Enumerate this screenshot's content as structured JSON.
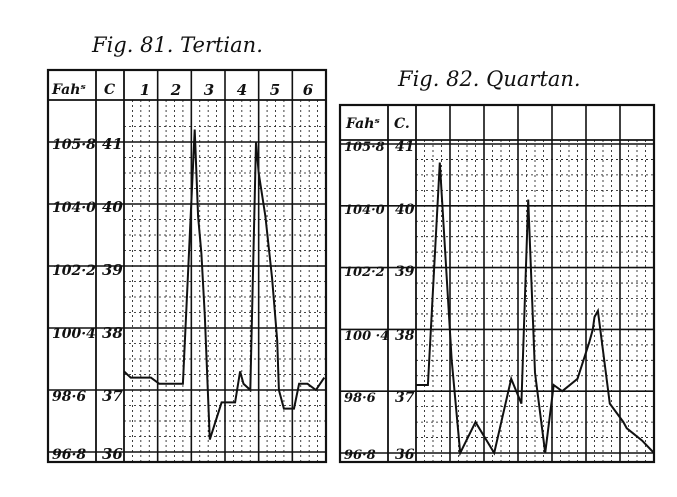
{
  "chart_data": [
    {
      "type": "line",
      "title": "Fig. 81. Tertian.",
      "fahrenheit_label": "Fahˢ",
      "celsius_label": "C",
      "column_headers": [
        "1",
        "2",
        "3",
        "4",
        "5",
        "6"
      ],
      "fahrenheit_ticks": [
        "105·8",
        "104·0",
        "102·2",
        "100·4",
        "98·6",
        "96·8"
      ],
      "celsius_ticks": [
        "41",
        "40",
        "39",
        "38",
        "37",
        "36"
      ],
      "ylim_celsius": [
        36,
        41
      ],
      "x_range_days": [
        0,
        6
      ],
      "grid": true,
      "series": [
        {
          "x": [
            0,
            0.2,
            0.4,
            0.8,
            1.05,
            1.35,
            1.5,
            1.62,
            1.75,
            1.75,
            2.1,
            2.2,
            2.3,
            2.4,
            2.55,
            2.9,
            3.3,
            3.45,
            3.55,
            3.75,
            3.92,
            4.0,
            4.2,
            4.4,
            4.55,
            4.6,
            4.75,
            5.05,
            5.2,
            5.45,
            5.7,
            5.95
          ],
          "y": [
            37.3,
            37.2,
            37.2,
            37.2,
            37.1,
            37.1,
            37.1,
            37.1,
            37.1,
            37.1,
            41.2,
            39.8,
            39.2,
            38.2,
            36.2,
            36.8,
            36.8,
            37.3,
            37.1,
            37.0,
            41.0,
            40.5,
            39.8,
            38.8,
            37.8,
            37.0,
            36.7,
            36.7,
            37.1,
            37.1,
            37.0,
            37.2
          ]
        }
      ]
    },
    {
      "type": "line",
      "title": "Fig. 82. Quartan.",
      "fahrenheit_label": "Fahˢ",
      "celsius_label": "C.",
      "fahrenheit_ticks": [
        "105·8",
        "104·0",
        "102·2",
        "100 ·4",
        "98·6",
        "96·8"
      ],
      "celsius_ticks": [
        "41",
        "40",
        "39",
        "38",
        "37",
        "36"
      ],
      "ylim_celsius": [
        36,
        41
      ],
      "x_range_days": [
        0,
        7
      ],
      "grid": true,
      "series": [
        {
          "x": [
            0,
            0.35,
            0.7,
            1.05,
            1.3,
            1.75,
            2.3,
            2.8,
            3.1,
            3.3,
            3.5,
            3.8,
            4.05,
            4.3,
            4.75,
            5.1,
            5.2,
            5.25,
            5.35,
            5.7,
            6.1,
            6.2,
            6.65,
            7.0
          ],
          "y": [
            37.1,
            37.1,
            40.7,
            37.5,
            36.0,
            36.5,
            36.0,
            37.2,
            36.8,
            40.1,
            37.3,
            36.0,
            37.1,
            37.0,
            37.2,
            37.8,
            38.0,
            38.2,
            38.3,
            36.8,
            36.5,
            36.4,
            36.2,
            36.0
          ]
        }
      ]
    }
  ]
}
